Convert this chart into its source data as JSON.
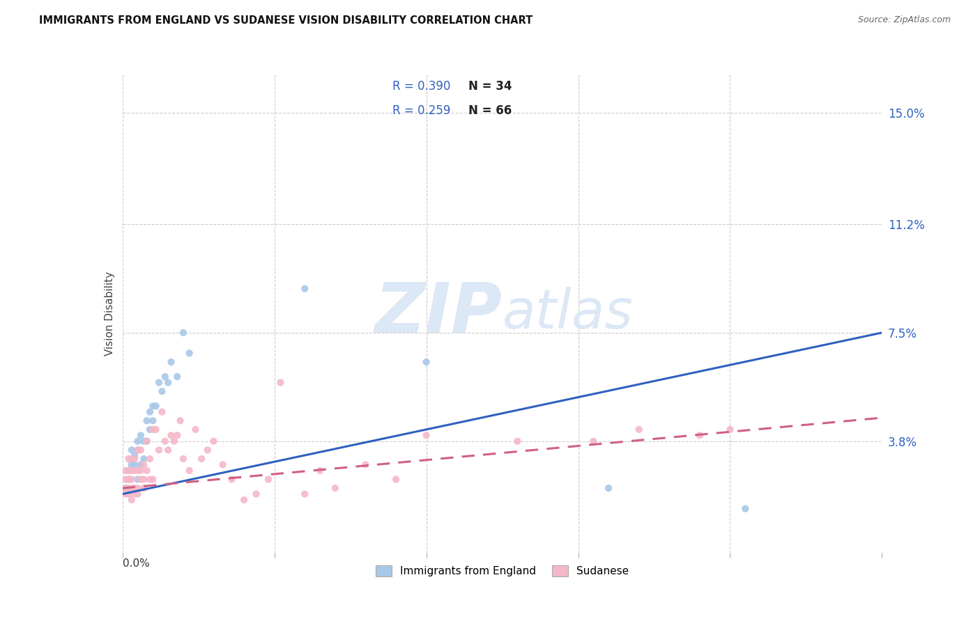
{
  "title": "IMMIGRANTS FROM ENGLAND VS SUDANESE VISION DISABILITY CORRELATION CHART",
  "source": "Source: ZipAtlas.com",
  "ylabel": "Vision Disability",
  "y_ticks": [
    0.038,
    0.075,
    0.112,
    0.15
  ],
  "y_tick_labels": [
    "3.8%",
    "7.5%",
    "11.2%",
    "15.0%"
  ],
  "x_min": 0.0,
  "x_max": 0.25,
  "y_min": 0.0,
  "y_max": 0.163,
  "legend_r1": "R = 0.390",
  "legend_n1": "N = 34",
  "legend_r2": "R = 0.259",
  "legend_n2": "N = 66",
  "blue_scatter_color": "#a8c8e8",
  "pink_scatter_color": "#f4b8c8",
  "blue_line_color": "#3060c0",
  "pink_line_color": "#d06080",
  "watermark_color": "#dce8f5",
  "grid_color": "#cccccc",
  "blue_scatter_x": [
    0.001,
    0.002,
    0.002,
    0.003,
    0.003,
    0.003,
    0.004,
    0.004,
    0.005,
    0.005,
    0.005,
    0.006,
    0.006,
    0.007,
    0.007,
    0.008,
    0.008,
    0.009,
    0.009,
    0.01,
    0.01,
    0.011,
    0.012,
    0.013,
    0.014,
    0.015,
    0.016,
    0.018,
    0.02,
    0.022,
    0.06,
    0.1,
    0.16,
    0.205
  ],
  "blue_scatter_y": [
    0.022,
    0.025,
    0.028,
    0.03,
    0.032,
    0.035,
    0.033,
    0.03,
    0.025,
    0.035,
    0.038,
    0.03,
    0.04,
    0.038,
    0.032,
    0.045,
    0.038,
    0.042,
    0.048,
    0.045,
    0.05,
    0.05,
    0.058,
    0.055,
    0.06,
    0.058,
    0.065,
    0.06,
    0.075,
    0.068,
    0.09,
    0.065,
    0.022,
    0.015
  ],
  "pink_scatter_x": [
    0.001,
    0.001,
    0.001,
    0.001,
    0.002,
    0.002,
    0.002,
    0.002,
    0.002,
    0.003,
    0.003,
    0.003,
    0.003,
    0.003,
    0.004,
    0.004,
    0.004,
    0.004,
    0.005,
    0.005,
    0.005,
    0.005,
    0.006,
    0.006,
    0.006,
    0.007,
    0.007,
    0.007,
    0.008,
    0.008,
    0.009,
    0.009,
    0.01,
    0.01,
    0.011,
    0.012,
    0.013,
    0.014,
    0.015,
    0.016,
    0.017,
    0.018,
    0.019,
    0.02,
    0.022,
    0.024,
    0.026,
    0.028,
    0.03,
    0.033,
    0.036,
    0.04,
    0.044,
    0.048,
    0.052,
    0.06,
    0.065,
    0.07,
    0.08,
    0.09,
    0.1,
    0.13,
    0.155,
    0.17,
    0.19,
    0.2
  ],
  "pink_scatter_y": [
    0.02,
    0.022,
    0.025,
    0.028,
    0.02,
    0.022,
    0.025,
    0.028,
    0.032,
    0.018,
    0.022,
    0.025,
    0.028,
    0.032,
    0.02,
    0.022,
    0.028,
    0.032,
    0.02,
    0.022,
    0.028,
    0.035,
    0.025,
    0.028,
    0.035,
    0.022,
    0.025,
    0.03,
    0.028,
    0.038,
    0.025,
    0.032,
    0.025,
    0.042,
    0.042,
    0.035,
    0.048,
    0.038,
    0.035,
    0.04,
    0.038,
    0.04,
    0.045,
    0.032,
    0.028,
    0.042,
    0.032,
    0.035,
    0.038,
    0.03,
    0.025,
    0.018,
    0.02,
    0.025,
    0.058,
    0.02,
    0.028,
    0.022,
    0.03,
    0.025,
    0.04,
    0.038,
    0.038,
    0.042,
    0.04,
    0.042
  ],
  "blue_line_x0": 0.0,
  "blue_line_y0": 0.02,
  "blue_line_x1": 0.25,
  "blue_line_y1": 0.075,
  "pink_line_x0": 0.0,
  "pink_line_y0": 0.022,
  "pink_line_x1": 0.25,
  "pink_line_y1": 0.046
}
